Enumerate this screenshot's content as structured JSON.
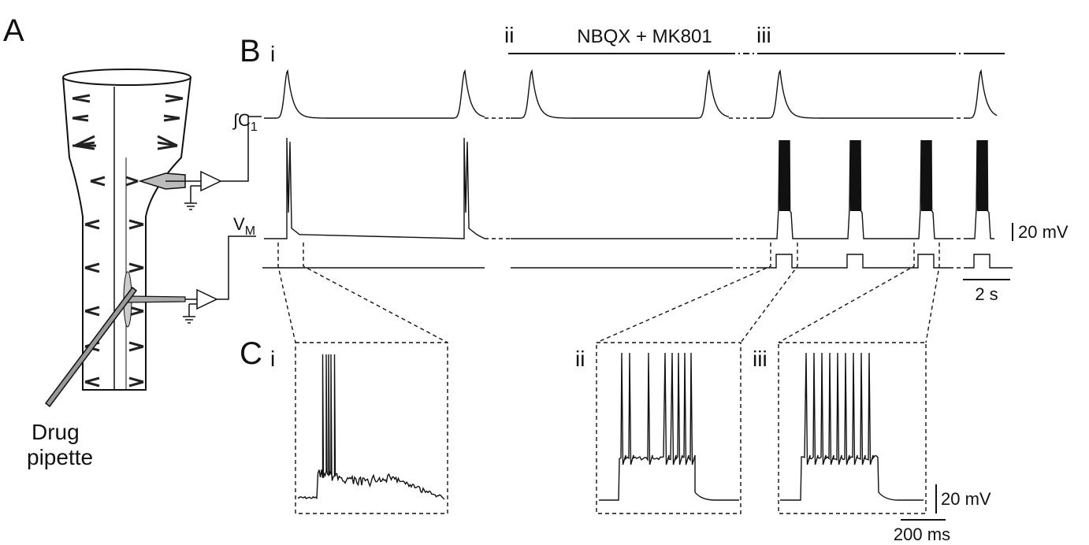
{
  "panels": {
    "A": {
      "label": "A",
      "pipette_label": [
        "Drug",
        "pipette"
      ]
    },
    "B": {
      "label": "B",
      "sublabels": [
        "i",
        "ii",
        "iii"
      ],
      "drug_label": "NBQX + MK801",
      "trace_labels": {
        "integrated": {
          "text": "∫C",
          "subscript": "1"
        },
        "membrane": {
          "text": "V",
          "subscript": "M"
        }
      },
      "scale_bars": {
        "voltage": "20 mV",
        "time": "2 s"
      }
    },
    "C": {
      "label": "C",
      "sublabels": [
        "i",
        "ii",
        "iii"
      ],
      "scale_bars": {
        "voltage": "20 mV",
        "time": "200 ms"
      }
    }
  }
}
